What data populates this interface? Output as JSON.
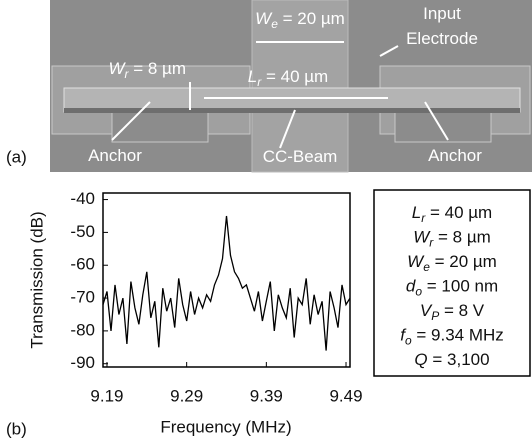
{
  "figure": {
    "panel_a": {
      "label": "(a)",
      "annotations": [
        {
          "symbol": "W",
          "sub": "e",
          "text": " = 20 µm"
        },
        {
          "text": "Input"
        },
        {
          "text": "Electrode"
        },
        {
          "symbol": "W",
          "sub": "r",
          "text": " = 8 µm"
        },
        {
          "symbol": "L",
          "sub": "r",
          "text": " = 40 µm"
        },
        {
          "text": "Anchor"
        },
        {
          "text": "CC-Beam"
        },
        {
          "text": "Anchor"
        }
      ]
    },
    "panel_b": {
      "label": "(b)"
    },
    "parameters": [
      {
        "symbol": "L",
        "sub": "r",
        "text": " = 40 µm"
      },
      {
        "symbol": "W",
        "sub": "r",
        "text": " = 8 µm"
      },
      {
        "symbol": "W",
        "sub": "e",
        "text": " = 20 µm"
      },
      {
        "symbol": "d",
        "sub": "o",
        "text": " = 100 nm"
      },
      {
        "symbol": "V",
        "sub": "P",
        "text": " = 8 V"
      },
      {
        "symbol": "f",
        "sub": "o",
        "text": " = 9.34 MHz"
      },
      {
        "symbol": "Q",
        "text": " = 3,100"
      }
    ]
  },
  "chart_data": {
    "type": "line",
    "x_label": "Frequency (MHz)",
    "y_label": "Transmission (dB)",
    "x": [
      9.185,
      9.19,
      9.195,
      9.2,
      9.205,
      9.21,
      9.215,
      9.22,
      9.225,
      9.23,
      9.235,
      9.24,
      9.245,
      9.25,
      9.255,
      9.26,
      9.265,
      9.27,
      9.275,
      9.28,
      9.285,
      9.29,
      9.295,
      9.3,
      9.305,
      9.31,
      9.315,
      9.32,
      9.325,
      9.33,
      9.335,
      9.34,
      9.345,
      9.35,
      9.355,
      9.36,
      9.365,
      9.37,
      9.375,
      9.38,
      9.385,
      9.39,
      9.395,
      9.4,
      9.405,
      9.41,
      9.415,
      9.42,
      9.425,
      9.43,
      9.435,
      9.44,
      9.445,
      9.45,
      9.455,
      9.46,
      9.465,
      9.47,
      9.475,
      9.48,
      9.485,
      9.49,
      9.495
    ],
    "series": [
      {
        "color": "#000000",
        "values": [
          -72,
          -68,
          -80,
          -66,
          -75,
          -70,
          -84,
          -65,
          -73,
          -78,
          -69,
          -62,
          -76,
          -71,
          -85,
          -67,
          -74,
          -70,
          -79,
          -64,
          -72,
          -77,
          -68,
          -75,
          -70,
          -73,
          -69,
          -71,
          -66,
          -63,
          -58,
          -45,
          -57,
          -62,
          -64,
          -67,
          -66,
          -70,
          -74,
          -68,
          -77,
          -71,
          -65,
          -80,
          -69,
          -73,
          -76,
          -67,
          -82,
          -70,
          -72,
          -64,
          -78,
          -69,
          -75,
          -71,
          -86,
          -68,
          -73,
          -79,
          -66,
          -72,
          -70
        ]
      }
    ],
    "xlim": [
      9.185,
      9.495
    ],
    "ylim": [
      -91,
      -38
    ],
    "xticks": [
      9.19,
      9.29,
      9.39,
      9.49
    ],
    "yticks": [
      -40,
      -50,
      -60,
      -70,
      -80,
      -90
    ]
  }
}
